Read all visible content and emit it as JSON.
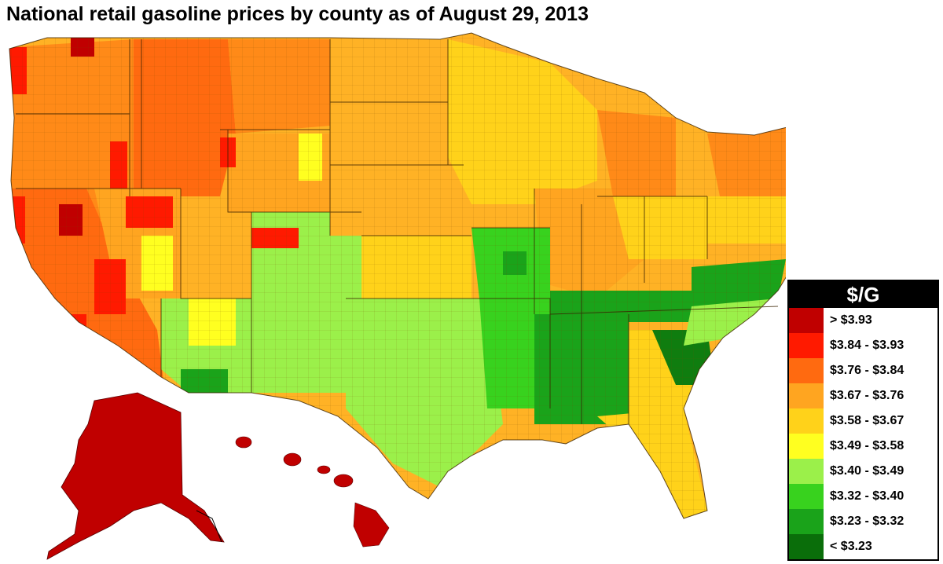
{
  "title": "National retail gasoline prices by county as of August 29, 2013",
  "legend": {
    "header": "$/G",
    "items": [
      {
        "label": "> $3.93",
        "color": "#c00000"
      },
      {
        "label": "$3.84 - $3.93",
        "color": "#ff1a00"
      },
      {
        "label": "$3.76 - $3.84",
        "color": "#ff6a10"
      },
      {
        "label": "$3.67 - $3.76",
        "color": "#ffa520"
      },
      {
        "label": "$3.58 - $3.67",
        "color": "#ffd21a"
      },
      {
        "label": "$3.49 - $3.58",
        "color": "#ffff20"
      },
      {
        "label": "$3.40 - $3.49",
        "color": "#9bf04a"
      },
      {
        "label": "$3.32 - $3.40",
        "color": "#38d21e"
      },
      {
        "label": "$3.23 - $3.32",
        "color": "#1aa31a"
      },
      {
        "label": "< $3.23",
        "color": "#0a6e0a"
      }
    ]
  }
}
